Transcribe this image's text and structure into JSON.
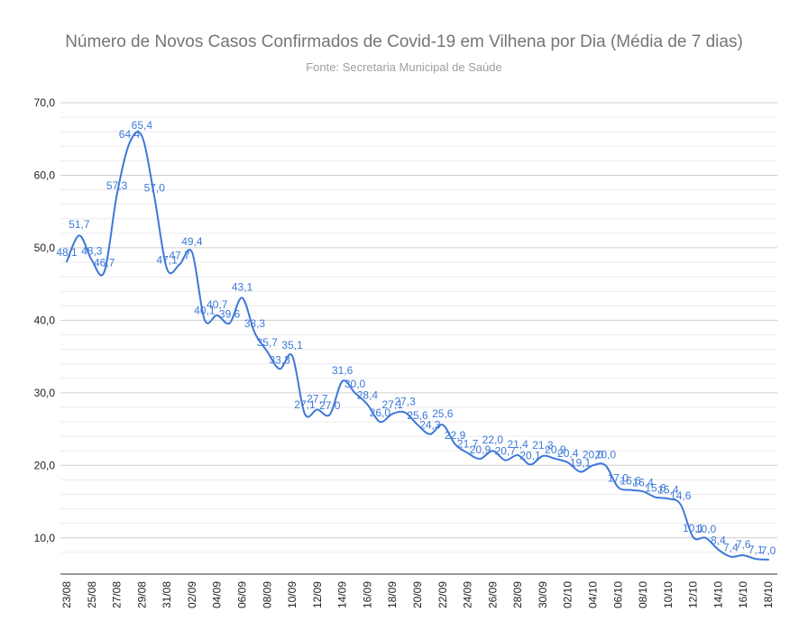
{
  "chart_data": {
    "type": "line",
    "title": "Número de Novos Casos Confirmados de Covid-19 em Vilhena por Dia (Média de 7 dias)",
    "subtitle": "Fonte: Secretaria Municipal de Saúde",
    "xlabel": "",
    "ylabel": "",
    "ylim": [
      5,
      70
    ],
    "yticks": [
      "10,0",
      "20,0",
      "30,0",
      "40,0",
      "50,0",
      "60,0",
      "70,0"
    ],
    "ytick_values": [
      10,
      20,
      30,
      40,
      50,
      60,
      70
    ],
    "grid": true,
    "line_color": "#3d78d8",
    "x": [
      "23/08",
      "24/08",
      "25/08",
      "26/08",
      "27/08",
      "28/08",
      "29/08",
      "30/08",
      "31/08",
      "01/09",
      "02/09",
      "03/09",
      "04/09",
      "05/09",
      "06/09",
      "07/09",
      "08/09",
      "09/09",
      "10/09",
      "11/09",
      "12/09",
      "13/09",
      "14/09",
      "15/09",
      "16/09",
      "17/09",
      "18/09",
      "19/09",
      "20/09",
      "21/09",
      "22/09",
      "23/09",
      "24/09",
      "25/09",
      "26/09",
      "27/09",
      "28/09",
      "29/09",
      "30/09",
      "01/10",
      "02/10",
      "03/10",
      "04/10",
      "05/10",
      "06/10",
      "07/10",
      "08/10",
      "09/10",
      "10/10",
      "11/10",
      "12/10",
      "13/10",
      "14/10",
      "15/10",
      "16/10",
      "17/10",
      "18/10"
    ],
    "xtick_labels": [
      "23/08",
      "25/08",
      "27/08",
      "29/08",
      "31/08",
      "02/09",
      "04/09",
      "06/09",
      "08/09",
      "10/09",
      "12/09",
      "14/09",
      "16/09",
      "18/09",
      "20/09",
      "22/09",
      "24/09",
      "26/09",
      "28/09",
      "30/09",
      "02/10",
      "04/10",
      "06/10",
      "08/10",
      "10/10",
      "12/10",
      "14/10",
      "16/10",
      "18/10"
    ],
    "values": [
      48.1,
      51.7,
      48.3,
      46.7,
      57.3,
      64.4,
      65.4,
      57.0,
      47.1,
      47.7,
      49.4,
      40.1,
      40.7,
      39.6,
      43.1,
      38.3,
      35.7,
      33.3,
      35.1,
      27.1,
      27.7,
      27.0,
      31.6,
      30.0,
      28.4,
      26.0,
      27.1,
      27.3,
      25.6,
      24.3,
      25.6,
      22.9,
      21.7,
      20.9,
      22.0,
      20.7,
      21.4,
      20.1,
      21.3,
      20.9,
      20.4,
      19.1,
      20.0,
      20.0,
      17.0,
      16.6,
      16.4,
      15.6,
      15.4,
      14.6,
      10.1,
      10.0,
      8.4,
      7.4,
      7.6,
      7.1,
      7.0
    ],
    "data_labels": [
      "48,1",
      "51,7",
      "48,3",
      "46,7",
      "57,3",
      "64,4",
      "65,4",
      "57,0",
      "47,1",
      "47,7",
      "49,4",
      "40,1",
      "40,7",
      "39,6",
      "43,1",
      "38,3",
      "35,7",
      "33,3",
      "35,1",
      "27,1",
      "27,7",
      "27,0",
      "31,6",
      "30,0",
      "28,4",
      "26,0",
      "27,1",
      "27,3",
      "25,6",
      "24,3",
      "25,6",
      "22,9",
      "21,7",
      "20,9",
      "22,0",
      "20,7",
      "21,4",
      "20,1",
      "21,3",
      "20,9",
      "20,4",
      "19,1",
      "20,0",
      "20,0",
      "17,0",
      "16,6",
      "16,4",
      "15,6",
      "15,4",
      "14,6",
      "10,1",
      "10,0",
      "8,4",
      "7,4",
      "7,6",
      "7,1",
      "7,0"
    ]
  }
}
